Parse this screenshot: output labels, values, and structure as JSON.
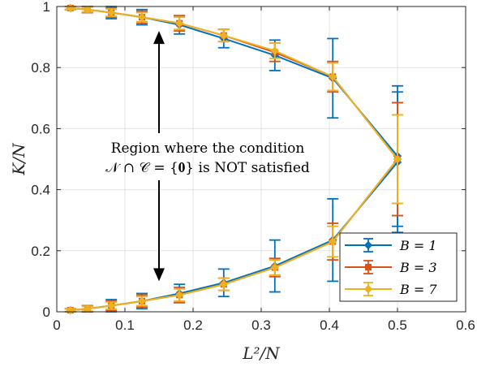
{
  "chart_data": {
    "type": "line",
    "title": "",
    "xlabel": "L²/N",
    "ylabel": "K/N",
    "xlim": [
      0,
      0.6
    ],
    "ylim": [
      0,
      1
    ],
    "xticks": [
      0,
      0.1,
      0.2,
      0.3,
      0.4,
      0.5,
      0.6
    ],
    "xtick_labels": [
      "0",
      "0.1",
      "0.2",
      "0.3",
      "0.4",
      "0.5",
      "0.6"
    ],
    "yticks": [
      0,
      0.2,
      0.4,
      0.6,
      0.8,
      1
    ],
    "ytick_labels": [
      "0",
      "0.2",
      "0.4",
      "0.6",
      "0.8",
      "1"
    ],
    "grid": true,
    "legend_position": "bottom-right",
    "annotation": {
      "line1": "Region where the condition",
      "line2": "𝒩 ∩ 𝒞 = {𝟎} is NOT satisfied",
      "arrow_x": 0.15,
      "arrow_top_y": 0.92,
      "arrow_bottom_y": 0.1
    },
    "x": [
      0.02,
      0.045,
      0.08,
      0.125,
      0.18,
      0.245,
      0.32,
      0.405,
      0.5
    ],
    "series": [
      {
        "name": "B = 1",
        "color": "#0072BD",
        "marker": "diamond",
        "upper": [
          0.995,
          0.99,
          0.98,
          0.965,
          0.94,
          0.895,
          0.84,
          0.765,
          0.51
        ],
        "upper_err": [
          0.005,
          0.01,
          0.02,
          0.025,
          0.03,
          0.03,
          0.05,
          0.13,
          0.23
        ],
        "lower": [
          0.005,
          0.01,
          0.02,
          0.035,
          0.06,
          0.095,
          0.15,
          0.235,
          0.49
        ],
        "lower_err": [
          0.005,
          0.01,
          0.02,
          0.025,
          0.03,
          0.045,
          0.085,
          0.135,
          0.23
        ]
      },
      {
        "name": "B = 3",
        "color": "#D95319",
        "marker": "square",
        "upper": [
          0.995,
          0.99,
          0.98,
          0.965,
          0.945,
          0.905,
          0.85,
          0.77,
          0.5
        ],
        "upper_err": [
          0.005,
          0.01,
          0.015,
          0.02,
          0.025,
          0.02,
          0.03,
          0.05,
          0.185
        ],
        "lower": [
          0.005,
          0.01,
          0.02,
          0.035,
          0.055,
          0.09,
          0.145,
          0.23,
          0.5
        ],
        "lower_err": [
          0.005,
          0.01,
          0.015,
          0.02,
          0.025,
          0.02,
          0.03,
          0.06,
          0.185
        ]
      },
      {
        "name": "B = 7",
        "color": "#EDB120",
        "marker": "diamond",
        "upper": [
          0.995,
          0.99,
          0.98,
          0.965,
          0.945,
          0.905,
          0.855,
          0.77,
          0.5
        ],
        "upper_err": [
          0.005,
          0.008,
          0.012,
          0.015,
          0.02,
          0.02,
          0.025,
          0.045,
          0.145
        ],
        "lower": [
          0.005,
          0.01,
          0.02,
          0.035,
          0.055,
          0.09,
          0.145,
          0.23,
          0.5
        ],
        "lower_err": [
          0.005,
          0.008,
          0.012,
          0.015,
          0.02,
          0.02,
          0.025,
          0.05,
          0.145
        ]
      }
    ]
  }
}
